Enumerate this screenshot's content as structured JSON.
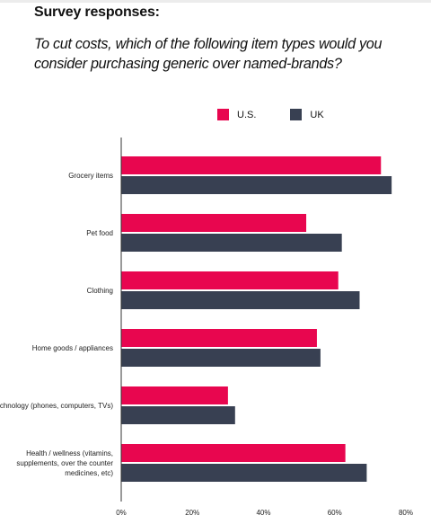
{
  "heading": "Survey responses:",
  "question": "To cut costs, which of the following item types would you consider purchasing generic over named-brands?",
  "colors": {
    "us": "#e8064f",
    "uk": "#384052",
    "axis": "#333333"
  },
  "chart_data": {
    "type": "bar",
    "orientation": "horizontal",
    "categories": [
      "Grocery items",
      "Pet food",
      "Clothing",
      "Home goods / appliances",
      "Technology (phones, computers, TVs)",
      "Health / wellness (vitamins, supplements, over the counter medicines, etc)"
    ],
    "series": [
      {
        "name": "U.S.",
        "color": "#e8064f",
        "values": [
          73,
          52,
          61,
          55,
          30,
          63
        ]
      },
      {
        "name": "UK",
        "color": "#384052",
        "values": [
          76,
          62,
          67,
          56,
          32,
          69
        ]
      }
    ],
    "xlim": [
      0,
      80
    ],
    "x_ticks": [
      "0%",
      "20%",
      "40%",
      "60%",
      "80%"
    ],
    "legend_position": "top"
  }
}
